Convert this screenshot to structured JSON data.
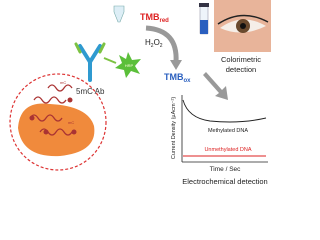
{
  "labels": {
    "antibody": "5mC Ab",
    "enzyme": "HRP",
    "mark": "mC",
    "tmb_red": {
      "main": "TMB",
      "sub": "red"
    },
    "peroxide": [
      "H",
      "2",
      "O",
      "2"
    ],
    "tmb_ox": {
      "main": "TMB",
      "sub": "ox"
    },
    "colorimetric": [
      "Colorimetric",
      "detection"
    ],
    "electrochemical": "Electrochemical detection"
  },
  "chart": {
    "y_label": "Current Density (µAcm⁻²)",
    "x_label": "Time / Sec",
    "curves": [
      "Methylated DNA",
      "Unmethylated DNA"
    ]
  }
}
